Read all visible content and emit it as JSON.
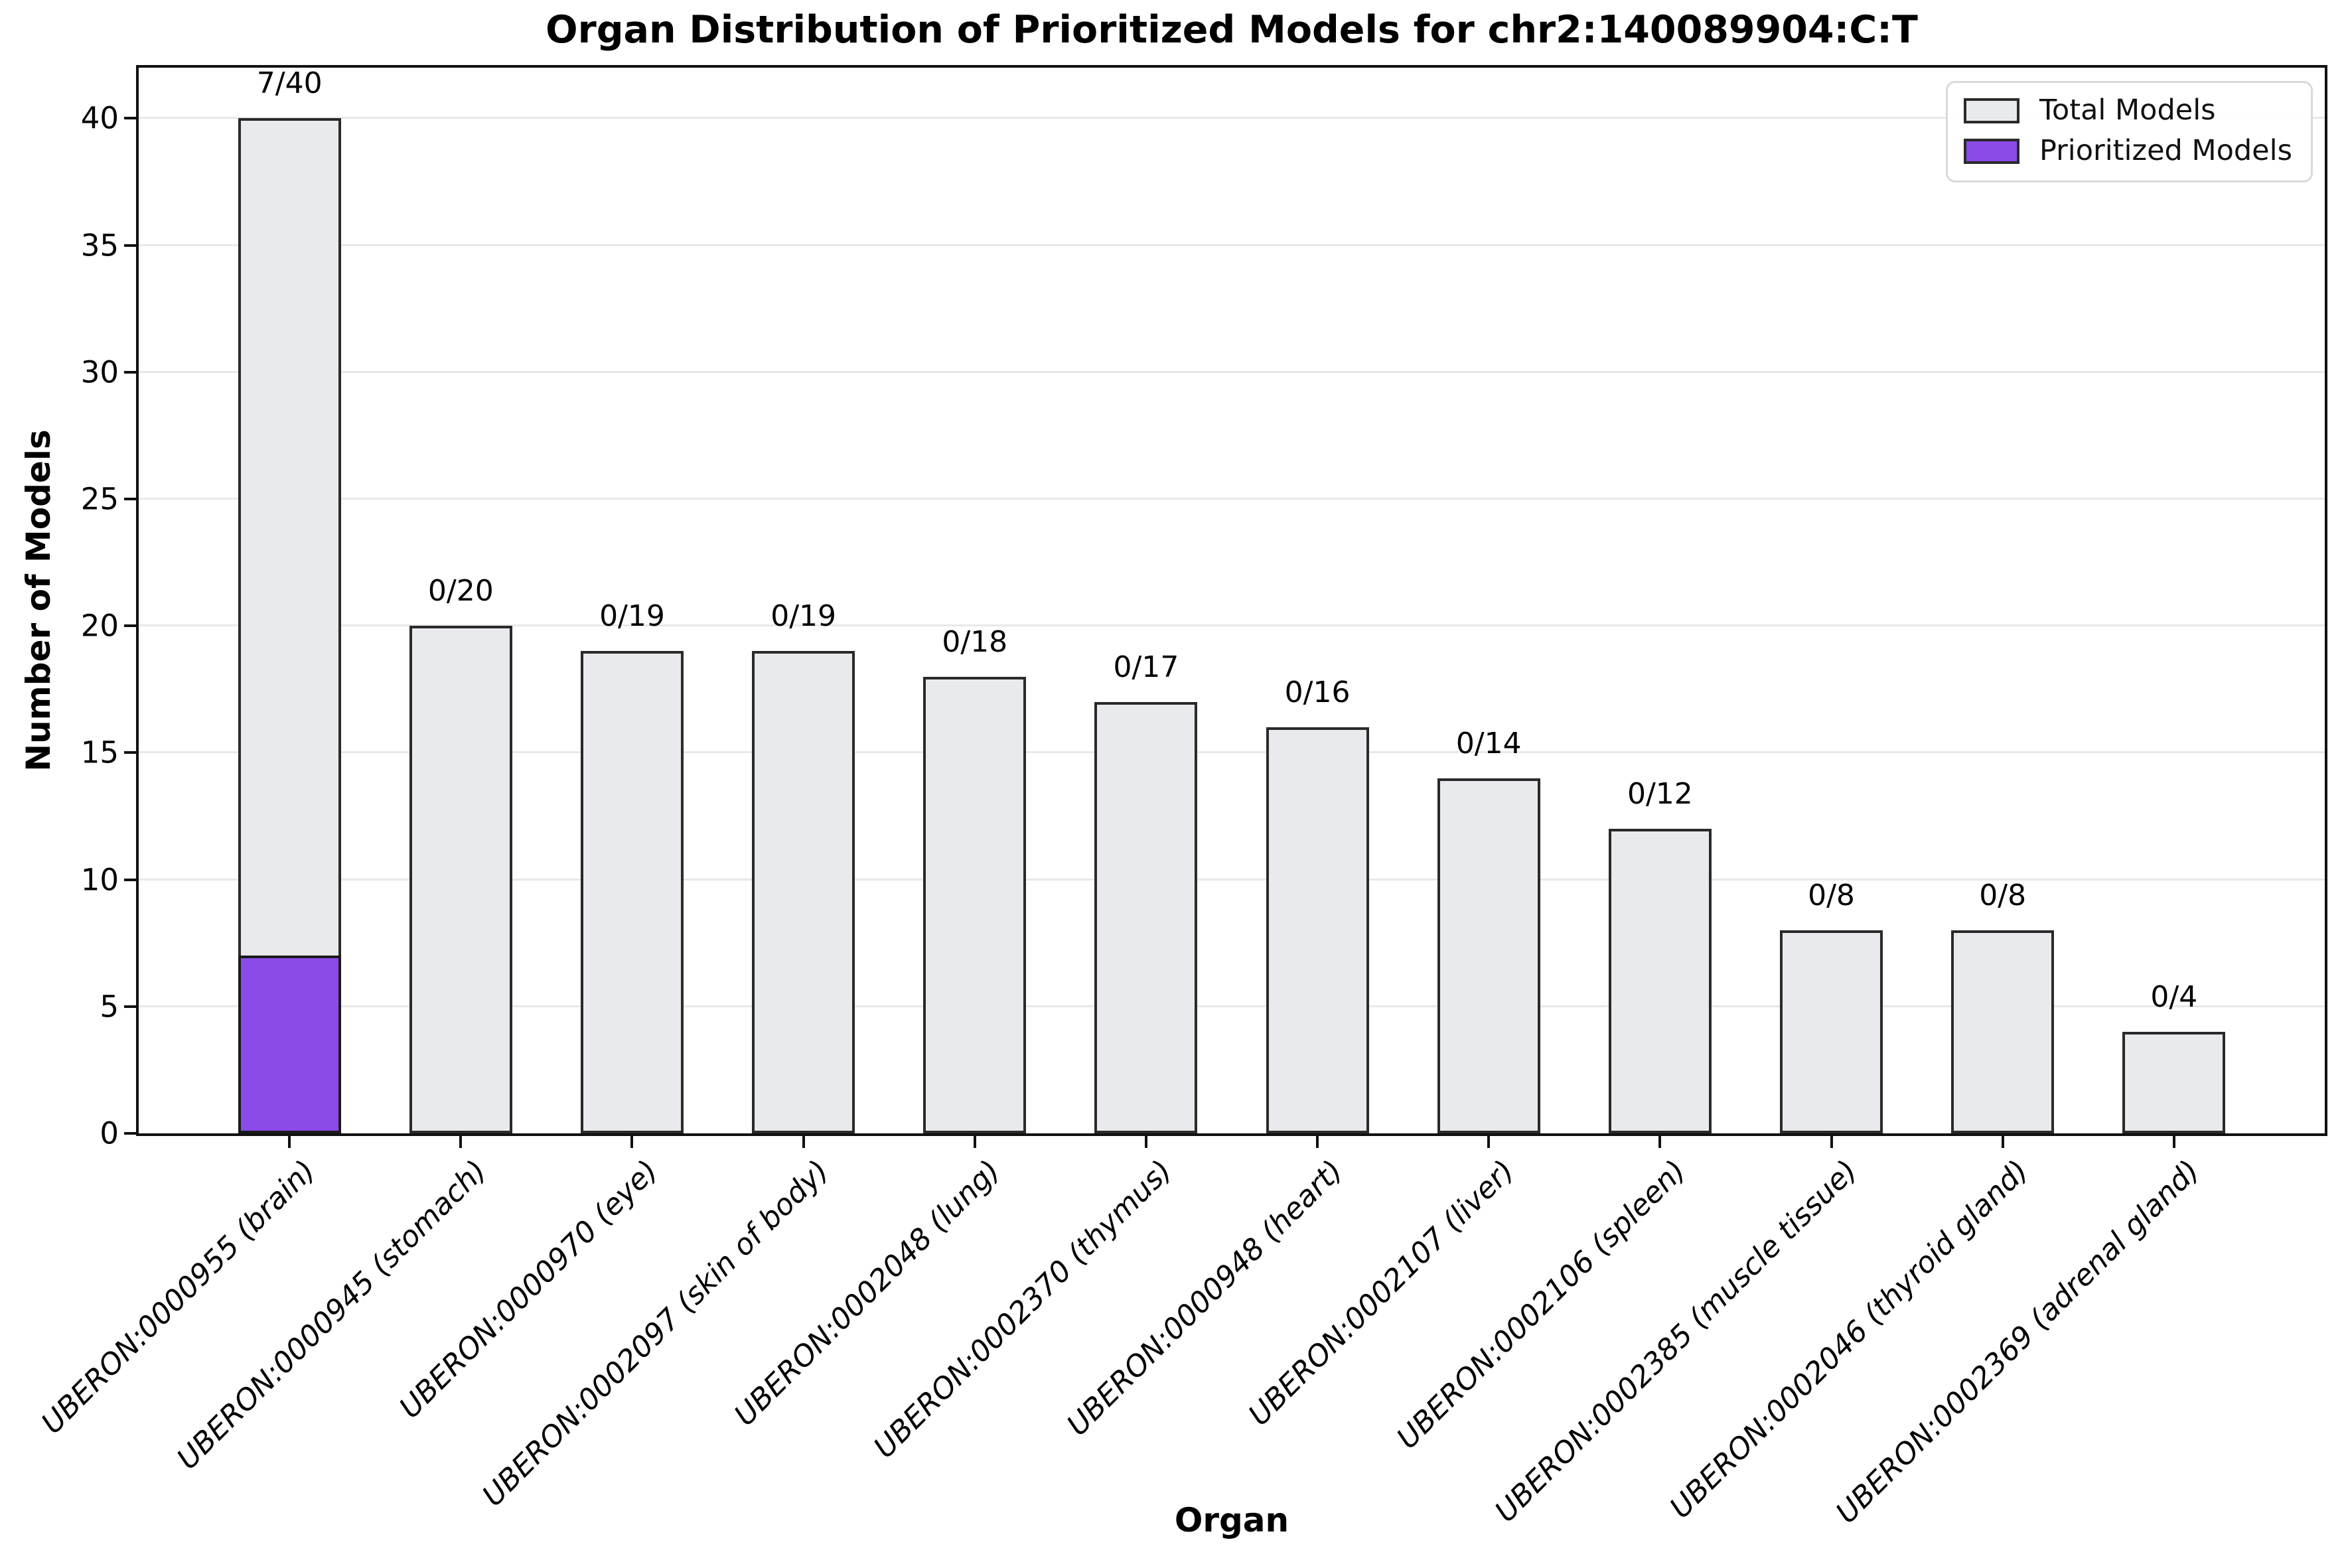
{
  "chart_data": {
    "type": "bar",
    "title": "Organ Distribution of Prioritized Models for chr2:140089904:C:T",
    "xlabel": "Organ",
    "ylabel": "Number of Models",
    "ylim": [
      0,
      42
    ],
    "yticks": [
      0,
      5,
      10,
      15,
      20,
      25,
      30,
      35,
      40
    ],
    "grid": "horizontal",
    "categories": [
      "UBERON:0000955 (brain)",
      "UBERON:0000945 (stomach)",
      "UBERON:0000970 (eye)",
      "UBERON:0002097 (skin of body)",
      "UBERON:0002048 (lung)",
      "UBERON:0002370 (thymus)",
      "UBERON:0000948 (heart)",
      "UBERON:0002107 (liver)",
      "UBERON:0002106 (spleen)",
      "UBERON:0002385 (muscle tissue)",
      "UBERON:0002046 (thyroid gland)",
      "UBERON:0002369 (adrenal gland)"
    ],
    "series": [
      {
        "name": "Total Models",
        "values": [
          40,
          20,
          19,
          19,
          18,
          17,
          16,
          14,
          12,
          8,
          8,
          4
        ],
        "color": "#e9eaed",
        "edge_color": "#2a2a2a"
      },
      {
        "name": "Prioritized Models",
        "values": [
          7,
          0,
          0,
          0,
          0,
          0,
          0,
          0,
          0,
          0,
          0,
          0
        ],
        "color": "#8a4be8",
        "edge_color": "#1a1a1a"
      }
    ],
    "bar_labels": [
      "7/40",
      "0/20",
      "0/19",
      "0/19",
      "0/18",
      "0/17",
      "0/16",
      "0/14",
      "0/12",
      "0/8",
      "0/8",
      "0/4"
    ],
    "legend": {
      "position": "upper right",
      "entries": [
        {
          "label": "Total Models",
          "color": "#e9eaed"
        },
        {
          "label": "Prioritized Models",
          "color": "#8a4be8"
        }
      ]
    },
    "grid_color": "#e8e8e8",
    "axis_color": "#111111"
  }
}
